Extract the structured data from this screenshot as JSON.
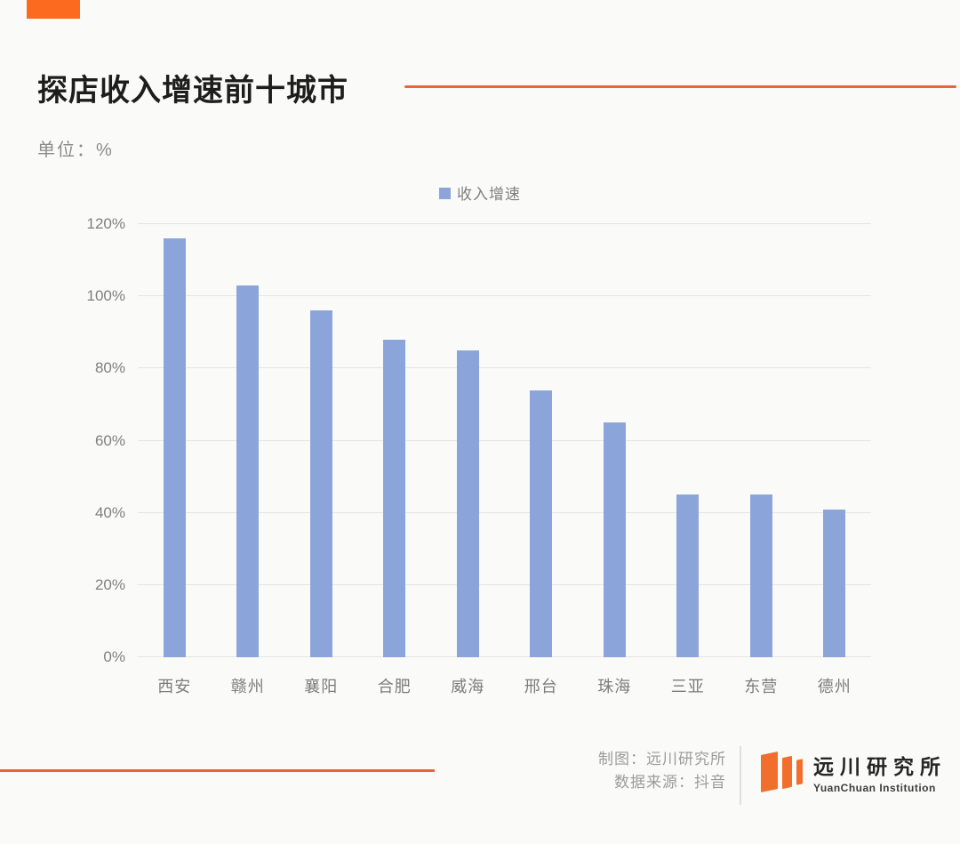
{
  "header": {
    "title": "探店收入增速前十城市",
    "unit_label": "单位：%",
    "accent_block_color": "#FB6A1E",
    "accent_line_color": "#E7663A"
  },
  "chart_data": {
    "type": "bar",
    "title": "探店收入增速前十城市",
    "unit": "%",
    "categories": [
      "西安",
      "赣州",
      "襄阳",
      "合肥",
      "威海",
      "邢台",
      "珠海",
      "三亚",
      "东营",
      "德州"
    ],
    "values": [
      116,
      103,
      96,
      88,
      85,
      74,
      65,
      45,
      45,
      41
    ],
    "series_name": "收入增速",
    "bar_color": "#8BA5DA",
    "ylim": [
      0,
      120
    ],
    "ytick_labels": [
      "0%",
      "20%",
      "40%",
      "60%",
      "80%",
      "100%",
      "120%"
    ],
    "grid": true,
    "legend_position": "top-center",
    "xlabel": "",
    "ylabel": ""
  },
  "legend": {
    "label": "收入增速",
    "swatch_color": "#8BA5DA"
  },
  "footer": {
    "credit_line1": "制图：远川研究所",
    "credit_line2": "数据来源：抖音",
    "logo": {
      "name_cn": "远川研究所",
      "name_en": "YuanChuan Institution",
      "mark_color": "#F26E2C"
    }
  }
}
